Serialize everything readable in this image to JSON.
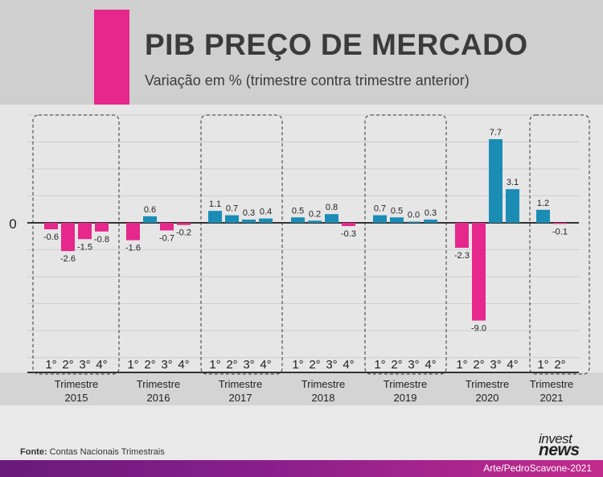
{
  "header": {
    "title": "PIB PREÇO DE MERCADO",
    "subtitle": "Variação em % (trimestre contra trimestre anterior)"
  },
  "colors": {
    "negative": "#e6278b",
    "positive": "#1b8db5",
    "accent": "#e6278b",
    "zero_line": "#333333"
  },
  "chart_data": {
    "type": "bar",
    "title": "PIB PREÇO DE MERCADO",
    "subtitle": "Variação em % (trimestre contra trimestre anterior)",
    "zero_label": "0",
    "ylim": [
      -10.5,
      10.0
    ],
    "groups": [
      {
        "label_line1": "Trimestre",
        "label_line2": "2015",
        "quarters": [
          "1°",
          "2°",
          "3°",
          "4°"
        ],
        "values": [
          -0.6,
          -2.6,
          -1.5,
          -0.8
        ],
        "value_labels": [
          "-0.6",
          "-2.6",
          "-1.5",
          "-0.8"
        ]
      },
      {
        "label_line1": "Trimestre",
        "label_line2": "2016",
        "quarters": [
          "1°",
          "2°",
          "3°",
          "4°"
        ],
        "values": [
          -1.6,
          0.6,
          -0.7,
          -0.2
        ],
        "value_labels": [
          "-1.6",
          "0.6",
          "-0.7",
          "-0.2"
        ]
      },
      {
        "label_line1": "Trimestre",
        "label_line2": "2017",
        "quarters": [
          "1°",
          "2°",
          "3°",
          "4°"
        ],
        "values": [
          1.1,
          0.7,
          0.3,
          0.4
        ],
        "value_labels": [
          "1.1",
          "0.7",
          "0.3",
          "0.4"
        ]
      },
      {
        "label_line1": "Trimestre",
        "label_line2": "2018",
        "quarters": [
          "1°",
          "2°",
          "3°",
          "4°"
        ],
        "values": [
          0.5,
          0.2,
          0.8,
          -0.3
        ],
        "value_labels": [
          "0.5",
          "0.2",
          "0.8",
          "-0.3"
        ]
      },
      {
        "label_line1": "Trimestre",
        "label_line2": "2019",
        "quarters": [
          "1°",
          "2°",
          "3°",
          "4°"
        ],
        "values": [
          0.7,
          0.5,
          0.0,
          0.3
        ],
        "value_labels": [
          "0.7",
          "0.5",
          "0.0",
          "0.3"
        ]
      },
      {
        "label_line1": "Trimestre",
        "label_line2": "2020",
        "quarters": [
          "1°",
          "2°",
          "3°",
          "4°"
        ],
        "values": [
          -2.3,
          -9.0,
          7.7,
          3.1
        ],
        "value_labels": [
          "-2.3",
          "-9.0",
          "7.7",
          "3.1"
        ]
      },
      {
        "label_line1": "Trimestre",
        "label_line2": "2021",
        "quarters": [
          "1°",
          "2°"
        ],
        "values": [
          1.2,
          -0.1
        ],
        "value_labels": [
          "1.2",
          "-0.1"
        ]
      }
    ],
    "highlighted_groups": [
      "2015",
      "2017",
      "2019",
      "2021"
    ],
    "gridlines": true
  },
  "footer": {
    "source_label": "Fonte:",
    "source_text": "Contas Nacionais Trimestrais",
    "logo_top": "invest",
    "logo_bottom": "news",
    "credit": "Arte/PedroScavone-2021"
  }
}
